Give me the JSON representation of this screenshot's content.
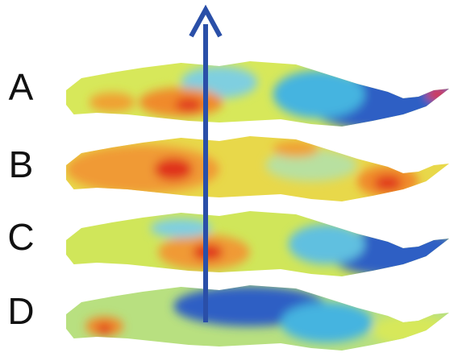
{
  "layers": [
    {
      "label": "A"
    },
    {
      "label": "B"
    },
    {
      "label": "C"
    },
    {
      "label": "D"
    }
  ]
}
